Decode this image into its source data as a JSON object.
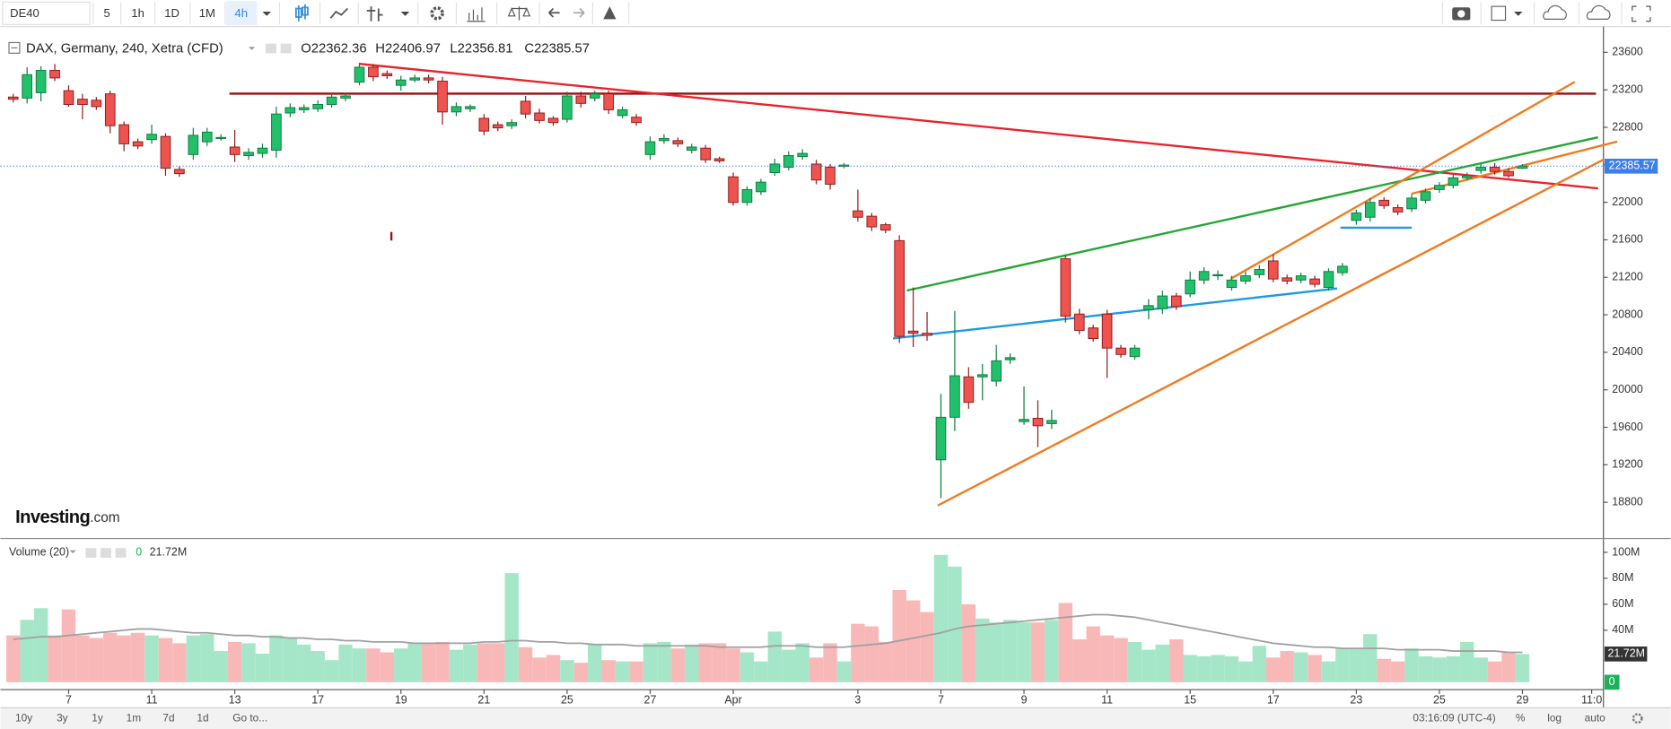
{
  "toolbar": {
    "symbol": "DE40",
    "intervals": [
      "5",
      "1h",
      "1D",
      "1M",
      "4h"
    ]
  },
  "bottom_bar": {
    "ranges": [
      "10y",
      "3y",
      "1y",
      "1m",
      "7d",
      "1d"
    ],
    "goto": "Go to...",
    "clock": "03:16:09 (UTC-4)",
    "options": [
      "%",
      "log",
      "auto"
    ]
  },
  "logo": [
    "Investing",
    ".com"
  ],
  "chart_data": [
    {
      "type": "candlestick",
      "title": "DAX, Germany, 240, Xetra (CFD)",
      "ohlc": [
        "O22362.36",
        "H22406.97",
        "L22356.81",
        "C22385.57"
      ],
      "up_color": "#22c06a",
      "down_color": "#ef5350",
      "up_border": "#0e7a3e",
      "down_border": "#8b1a1a",
      "open": [
        23123,
        23112,
        23169,
        23407,
        23191,
        23100,
        23089,
        23157,
        22828,
        22646,
        22669,
        22703,
        22351,
        22510,
        22646,
        22681,
        22590,
        22499,
        22522,
        22556,
        22953,
        22987,
        22998,
        23044,
        23112,
        23282,
        23441,
        23373,
        23248,
        23305,
        23327,
        23293,
        22964,
        22998,
        22896,
        22828,
        22817,
        23078,
        22953,
        22896,
        22885,
        23135,
        23112,
        23157,
        22926,
        22908,
        22510,
        22658,
        22658,
        22556,
        22578,
        22465,
        22272,
        21999,
        22113,
        22317,
        22374,
        22488,
        22408,
        22374,
        22385,
        21909,
        21852,
        21761,
        21591,
        20626,
        20603,
        19253,
        19707,
        20138,
        20138,
        20093,
        20320,
        19661,
        19696,
        19639,
        21398,
        20808,
        20660,
        20808,
        20445,
        20354,
        20853,
        20865,
        21001,
        21023,
        21171,
        21216,
        21092,
        21160,
        21228,
        21375,
        21194,
        21171,
        21182,
        21092,
        21250,
        21807,
        21841,
        22022,
        21943,
        21931,
        22022,
        22136,
        22181,
        22261,
        22340,
        22374,
        22329,
        22362.36
      ],
      "high": [
        23157,
        23441,
        23452,
        23475,
        23248,
        23157,
        23123,
        23191,
        22862,
        22680,
        22828,
        22737,
        22385,
        22794,
        22794,
        22726,
        22771,
        22578,
        22624,
        23021,
        23055,
        23044,
        23089,
        23169,
        23169,
        23487,
        23475,
        23407,
        23350,
        23362,
        23362,
        23339,
        23066,
        23044,
        22942,
        22862,
        22885,
        23135,
        22998,
        22919,
        23180,
        23180,
        23191,
        23191,
        23021,
        22942,
        22703,
        22726,
        22692,
        22624,
        22612,
        22488,
        22317,
        22170,
        22249,
        22465,
        22544,
        22567,
        22454,
        22408,
        22420,
        22136,
        21886,
        21783,
        21648,
        21092,
        20830,
        19957,
        20842,
        20241,
        20275,
        20479,
        20388,
        20036,
        19889,
        19786,
        21432,
        20865,
        20694,
        20854,
        20479,
        20479,
        20967,
        21058,
        21035,
        21262,
        21307,
        21273,
        21216,
        21262,
        21330,
        21443,
        21228,
        21250,
        21216,
        21296,
        21352,
        21920,
        22045,
        22056,
        21977,
        22090,
        22147,
        22215,
        22295,
        22317,
        22408,
        22420,
        22363,
        22406.97
      ],
      "low": [
        23066,
        23055,
        23078,
        23293,
        23021,
        22885,
        22987,
        22737,
        22544,
        22567,
        22624,
        22283,
        22272,
        22454,
        22601,
        22658,
        22431,
        22454,
        22476,
        22476,
        22908,
        22953,
        22964,
        23010,
        23078,
        23248,
        23293,
        23316,
        23191,
        23282,
        23270,
        22828,
        22919,
        22964,
        22715,
        22760,
        22783,
        22896,
        22840,
        22817,
        22851,
        23010,
        23078,
        22942,
        22896,
        22817,
        22454,
        22624,
        22590,
        22522,
        22420,
        22420,
        21965,
        21965,
        22079,
        22283,
        22340,
        22454,
        22193,
        22136,
        22363,
        21795,
        21693,
        21670,
        20501,
        20456,
        20524,
        18844,
        19559,
        19798,
        19889,
        20036,
        20275,
        19627,
        19389,
        19582,
        20717,
        20592,
        20513,
        20127,
        20343,
        20320,
        20751,
        20808,
        20853,
        20989,
        21126,
        21171,
        21058,
        21126,
        21194,
        21148,
        21126,
        21137,
        21092,
        21058,
        21216,
        21761,
        21795,
        21931,
        21863,
        21897,
        21988,
        22102,
        22147,
        22238,
        22306,
        22295,
        22261,
        22356.81
      ],
      "close": [
        23100,
        23362,
        23407,
        23327,
        23044,
        23044,
        23021,
        22817,
        22624,
        22601,
        22726,
        22363,
        22306,
        22715,
        22749,
        22692,
        22510,
        22533,
        22578,
        22942,
        23010,
        23010,
        23044,
        23123,
        23135,
        23441,
        23339,
        23350,
        23305,
        23327,
        23305,
        22964,
        23021,
        23021,
        22760,
        22794,
        22851,
        22942,
        22873,
        22851,
        23135,
        23055,
        23157,
        22987,
        22987,
        22851,
        22646,
        22681,
        22624,
        22590,
        22454,
        22442,
        21999,
        22136,
        22215,
        22408,
        22499,
        22522,
        22238,
        22193,
        22397,
        21841,
        21738,
        21704,
        20570,
        20603,
        20581,
        19707,
        20150,
        19866,
        20161,
        20309,
        20343,
        19684,
        19616,
        19673,
        20785,
        20634,
        20547,
        20445,
        20377,
        20445,
        20898,
        21001,
        20887,
        21171,
        21262,
        21228,
        21171,
        21216,
        21284,
        21182,
        21160,
        21216,
        21126,
        21262,
        21318,
        21886,
        21999,
        21965,
        21897,
        22045,
        22113,
        22181,
        22261,
        22283,
        22374,
        22329,
        22283,
        22385.57
      ],
      "xlim": [
        -0.54,
        114.85
      ],
      "xticks": [
        {
          "value": 4,
          "label": "7"
        },
        {
          "value": 10,
          "label": "11"
        },
        {
          "value": 16,
          "label": "13"
        },
        {
          "value": 22,
          "label": "17"
        },
        {
          "value": 28,
          "label": "19"
        },
        {
          "value": 34,
          "label": "21"
        },
        {
          "value": 40,
          "label": "25"
        },
        {
          "value": 46,
          "label": "27"
        },
        {
          "value": 52,
          "label": "Apr"
        },
        {
          "value": 61,
          "label": "3"
        },
        {
          "value": 67,
          "label": "7"
        },
        {
          "value": 73,
          "label": "9"
        },
        {
          "value": 79,
          "label": "11"
        },
        {
          "value": 85,
          "label": "15"
        },
        {
          "value": 91,
          "label": "17"
        },
        {
          "value": 97,
          "label": "23"
        },
        {
          "value": 103,
          "label": "25"
        },
        {
          "value": 109,
          "label": "29"
        },
        {
          "value": 114,
          "label": "11:0"
        }
      ],
      "ylim": [
        18425,
        23795
      ],
      "yticks": [
        23600,
        23200,
        22800,
        22400,
        22000,
        21600,
        21200,
        20800,
        20400,
        20000,
        19600,
        19200,
        18800
      ],
      "last_price_color": "#3d7ee8"
    },
    {
      "type": "bar",
      "title": "Volume (20)",
      "indicator_values": [
        "0",
        "21.72M"
      ],
      "up_color": "#a6e6c8",
      "down_color": "#f9b8b8",
      "ma_color": "#a0a0a0",
      "values": [
        36,
        48,
        57,
        36,
        56,
        36,
        34,
        38,
        36,
        38,
        36,
        34,
        30,
        36,
        37,
        24,
        31,
        30,
        22,
        36,
        34,
        29,
        24,
        17,
        29,
        26,
        26,
        23,
        26,
        30,
        30,
        31,
        25,
        29,
        30,
        30,
        84,
        27,
        19,
        21,
        17,
        15,
        29,
        17,
        16,
        16,
        30,
        31,
        26,
        29,
        30,
        30,
        26,
        23,
        16,
        39,
        25,
        30,
        19,
        30,
        16,
        45,
        43,
        31,
        71,
        63,
        54,
        98,
        89,
        60,
        49,
        46,
        48,
        46,
        46,
        48,
        61,
        33,
        43,
        36,
        34,
        31,
        25,
        29,
        33,
        21,
        20,
        21,
        20,
        16,
        28,
        19,
        24,
        23,
        21,
        16,
        26,
        26,
        37,
        18,
        16,
        26,
        20,
        19,
        20,
        31,
        19,
        16,
        23,
        21.72
      ],
      "ma": [
        33,
        34,
        35,
        35,
        36,
        37,
        38,
        39,
        40,
        41,
        41,
        40,
        39,
        38,
        38,
        37,
        36,
        36,
        35,
        35,
        34,
        34,
        33,
        33,
        32,
        32,
        31,
        31,
        31,
        30,
        30,
        30,
        30,
        30,
        31,
        31,
        32,
        32,
        31,
        31,
        30,
        30,
        29,
        29,
        29,
        28,
        28,
        28,
        28,
        28,
        28,
        27,
        27,
        27,
        27,
        28,
        28,
        28,
        27,
        27,
        27,
        28,
        29,
        30,
        32,
        34,
        36,
        38,
        41,
        43,
        44,
        45,
        46,
        47,
        48,
        49,
        50,
        51,
        52,
        52,
        51,
        50,
        48,
        46,
        44,
        42,
        40,
        38,
        36,
        34,
        32,
        30,
        29,
        28,
        27,
        27,
        26,
        26,
        26,
        26,
        25,
        25,
        25,
        25,
        24,
        24,
        24,
        24,
        23,
        23
      ],
      "ylim": [
        -5.7,
        109
      ],
      "yticks": [
        {
          "value": 100,
          "label": "100M"
        },
        {
          "value": 80,
          "label": "80M"
        },
        {
          "value": 60,
          "label": "60M"
        },
        {
          "value": 40,
          "label": "40M"
        }
      ]
    }
  ]
}
